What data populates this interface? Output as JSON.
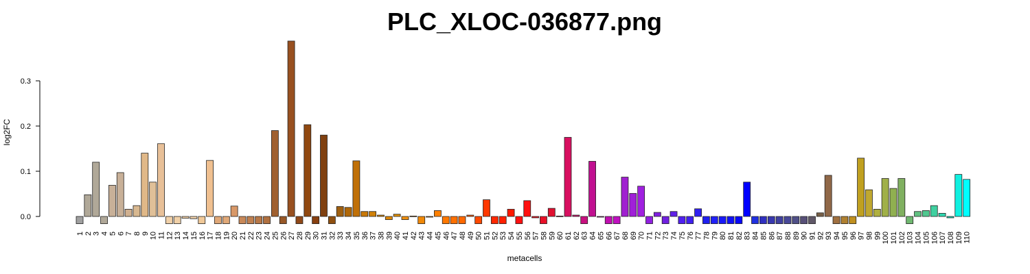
{
  "chart_data": {
    "type": "bar",
    "title": "PLC_XLOC-036877.png",
    "xlabel": "metacells",
    "ylabel": "log2FC",
    "ylim": [
      -0.02,
      0.39
    ],
    "yticks": [
      0.0,
      0.1,
      0.2,
      0.3
    ],
    "ytick_labels": [
      "0.0",
      "0.1",
      "0.2",
      "0.3"
    ],
    "grid": false,
    "categories": [
      "1",
      "2",
      "3",
      "4",
      "5",
      "6",
      "7",
      "8",
      "9",
      "10",
      "11",
      "12",
      "13",
      "14",
      "15",
      "16",
      "17",
      "18",
      "19",
      "20",
      "21",
      "22",
      "23",
      "24",
      "25",
      "26",
      "27",
      "28",
      "29",
      "30",
      "31",
      "32",
      "33",
      "34",
      "35",
      "36",
      "37",
      "38",
      "39",
      "40",
      "41",
      "42",
      "43",
      "44",
      "45",
      "46",
      "47",
      "48",
      "49",
      "50",
      "51",
      "52",
      "53",
      "54",
      "55",
      "56",
      "57",
      "58",
      "59",
      "60",
      "61",
      "62",
      "63",
      "64",
      "65",
      "66",
      "67",
      "68",
      "69",
      "70",
      "71",
      "72",
      "73",
      "74",
      "75",
      "76",
      "77",
      "78",
      "79",
      "80",
      "81",
      "82",
      "83",
      "84",
      "85",
      "86",
      "87",
      "88",
      "89",
      "90",
      "91",
      "92",
      "93",
      "94",
      "95",
      "96",
      "97",
      "98",
      "99",
      "100",
      "101",
      "102",
      "103",
      "104",
      "105",
      "106",
      "107",
      "108",
      "109",
      "110"
    ],
    "values": [
      -0.016,
      0.048,
      0.12,
      -0.016,
      0.069,
      0.097,
      0.016,
      0.024,
      0.14,
      0.076,
      0.161,
      -0.016,
      -0.016,
      -0.004,
      -0.005,
      -0.016,
      0.124,
      -0.016,
      -0.016,
      0.023,
      -0.016,
      -0.016,
      -0.016,
      -0.016,
      0.19,
      -0.016,
      0.388,
      -0.016,
      0.203,
      -0.016,
      0.18,
      -0.016,
      0.022,
      0.02,
      0.123,
      0.011,
      0.011,
      0.003,
      -0.007,
      0.005,
      -0.007,
      0.001,
      -0.016,
      0.0,
      0.013,
      -0.016,
      -0.016,
      -0.016,
      0.003,
      -0.016,
      0.037,
      -0.016,
      -0.016,
      0.016,
      -0.016,
      0.035,
      -0.003,
      -0.016,
      0.018,
      0.001,
      0.175,
      0.003,
      -0.016,
      0.122,
      0.0,
      -0.016,
      -0.016,
      0.087,
      0.051,
      0.067,
      -0.016,
      0.009,
      -0.016,
      0.011,
      -0.016,
      -0.016,
      0.017,
      -0.016,
      -0.016,
      -0.016,
      -0.016,
      -0.016,
      0.076,
      -0.016,
      -0.016,
      -0.016,
      -0.016,
      -0.016,
      -0.016,
      -0.016,
      -0.016,
      0.008,
      0.091,
      -0.016,
      -0.016,
      -0.016,
      0.129,
      0.059,
      0.016,
      0.084,
      0.062,
      0.084,
      -0.016,
      0.011,
      0.013,
      0.024,
      0.007,
      -0.003,
      0.093,
      0.082
    ],
    "colors": [
      "#a0a0a0",
      "#b0a898",
      "#b0a898",
      "#b0a898",
      "#c8b098",
      "#c8b098",
      "#d0b090",
      "#d8b890",
      "#e0b888",
      "#e0c098",
      "#e8c098",
      "#f0d0a8",
      "#f0d0a8",
      "#f0d0a8",
      "#f0d0a8",
      "#f0c898",
      "#f0c090",
      "#e0a878",
      "#e0a878",
      "#d89868",
      "#c88858",
      "#c08050",
      "#b87848",
      "#b07040",
      "#a06030",
      "#985828",
      "#985020",
      "#904818",
      "#904810",
      "#884010",
      "#804010",
      "#905010",
      "#a06010",
      "#b06808",
      "#c07008",
      "#c87808",
      "#d08008",
      "#d88808",
      "#e08808",
      "#e09008",
      "#f09010",
      "#f08810",
      "#f08808",
      "#ff8800",
      "#ff8000",
      "#ff7800",
      "#ff7000",
      "#ff6800",
      "#ff5800",
      "#ff4800",
      "#ff3800",
      "#ff2800",
      "#ff2000",
      "#ff1800",
      "#ff1010",
      "#ff1010",
      "#f01020",
      "#e81028",
      "#e01030",
      "#e01040",
      "#d81060",
      "#d01070",
      "#c81080",
      "#c01090",
      "#c01098",
      "#c010b0",
      "#c010c0",
      "#a020d0",
      "#a020d8",
      "#a020e0",
      "#9020e0",
      "#8020e0",
      "#7020e0",
      "#6020e8",
      "#5020f0",
      "#4020f0",
      "#3020f0",
      "#2020f0",
      "#2020f8",
      "#1818f8",
      "#1010f8",
      "#0808f8",
      "#0000ff",
      "#2030e0",
      "#3030c0",
      "#3838b0",
      "#4040a0",
      "#484898",
      "#505088",
      "#585078",
      "#605868",
      "#786048",
      "#906848",
      "#a07040",
      "#b08030",
      "#c09020",
      "#c0a020",
      "#c0a830",
      "#b0b040",
      "#a0b048",
      "#90b050",
      "#80b060",
      "#70b870",
      "#60c080",
      "#50c890",
      "#40d0a0",
      "#30d8b0",
      "#20e0c0",
      "#10f0e0",
      "#00ffff"
    ]
  }
}
